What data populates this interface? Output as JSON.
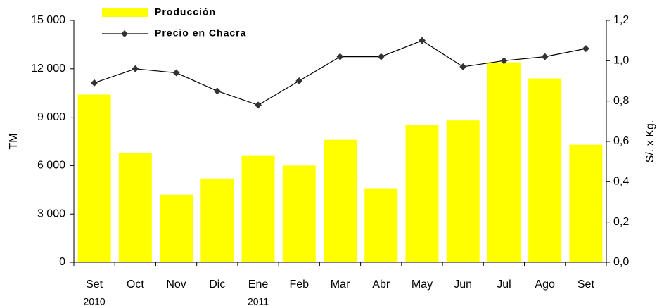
{
  "chart_data": {
    "type": "bar_line",
    "categories": [
      "Set",
      "Oct",
      "Nov",
      "Dic",
      "Ene",
      "Feb",
      "Mar",
      "Abr",
      "May",
      "Jun",
      "Jul",
      "Ago",
      "Set"
    ],
    "x_sublabels": [
      "2010",
      null,
      null,
      null,
      "2011",
      null,
      null,
      null,
      null,
      null,
      null,
      null,
      null
    ],
    "series": [
      {
        "name": "Producción",
        "color": "#ffff00",
        "type": "bar",
        "values": [
          10400,
          6800,
          4200,
          5200,
          6600,
          6000,
          7600,
          4600,
          8500,
          8800,
          12400,
          11400,
          7300
        ]
      },
      {
        "name": "Precio en Chacra",
        "color": "#000000",
        "type": "line",
        "axis": "y2",
        "values": [
          0.89,
          0.96,
          0.94,
          0.85,
          0.78,
          0.9,
          1.02,
          1.02,
          1.1,
          0.97,
          1.0,
          1.02,
          1.06
        ]
      }
    ],
    "ylabel": "TM",
    "y2label": "S/. x Kg.",
    "ylim": [
      0,
      15000
    ],
    "yticks": [
      0,
      {
        "value": 3000,
        "label": "3 000"
      },
      {
        "value": 6000,
        "label": "6 000"
      },
      {
        "value": 9000,
        "label": "9 000"
      },
      {
        "value": 12000,
        "label": "12 000"
      },
      {
        "value": 15000,
        "label": "15 000"
      }
    ],
    "y2lim": [
      0,
      1.2
    ],
    "y2ticks": [
      {
        "value": 0,
        "label": "0,0"
      },
      {
        "value": 0.2,
        "label": "0,2"
      },
      {
        "value": 0.4,
        "label": "0,4"
      },
      {
        "value": 0.6,
        "label": "0,6"
      },
      {
        "value": 0.8,
        "label": "0,8"
      },
      {
        "value": 1.0,
        "label": "1,0"
      },
      {
        "value": 1.2,
        "label": "1,2"
      }
    ],
    "grid": false,
    "legend": "top-left"
  }
}
